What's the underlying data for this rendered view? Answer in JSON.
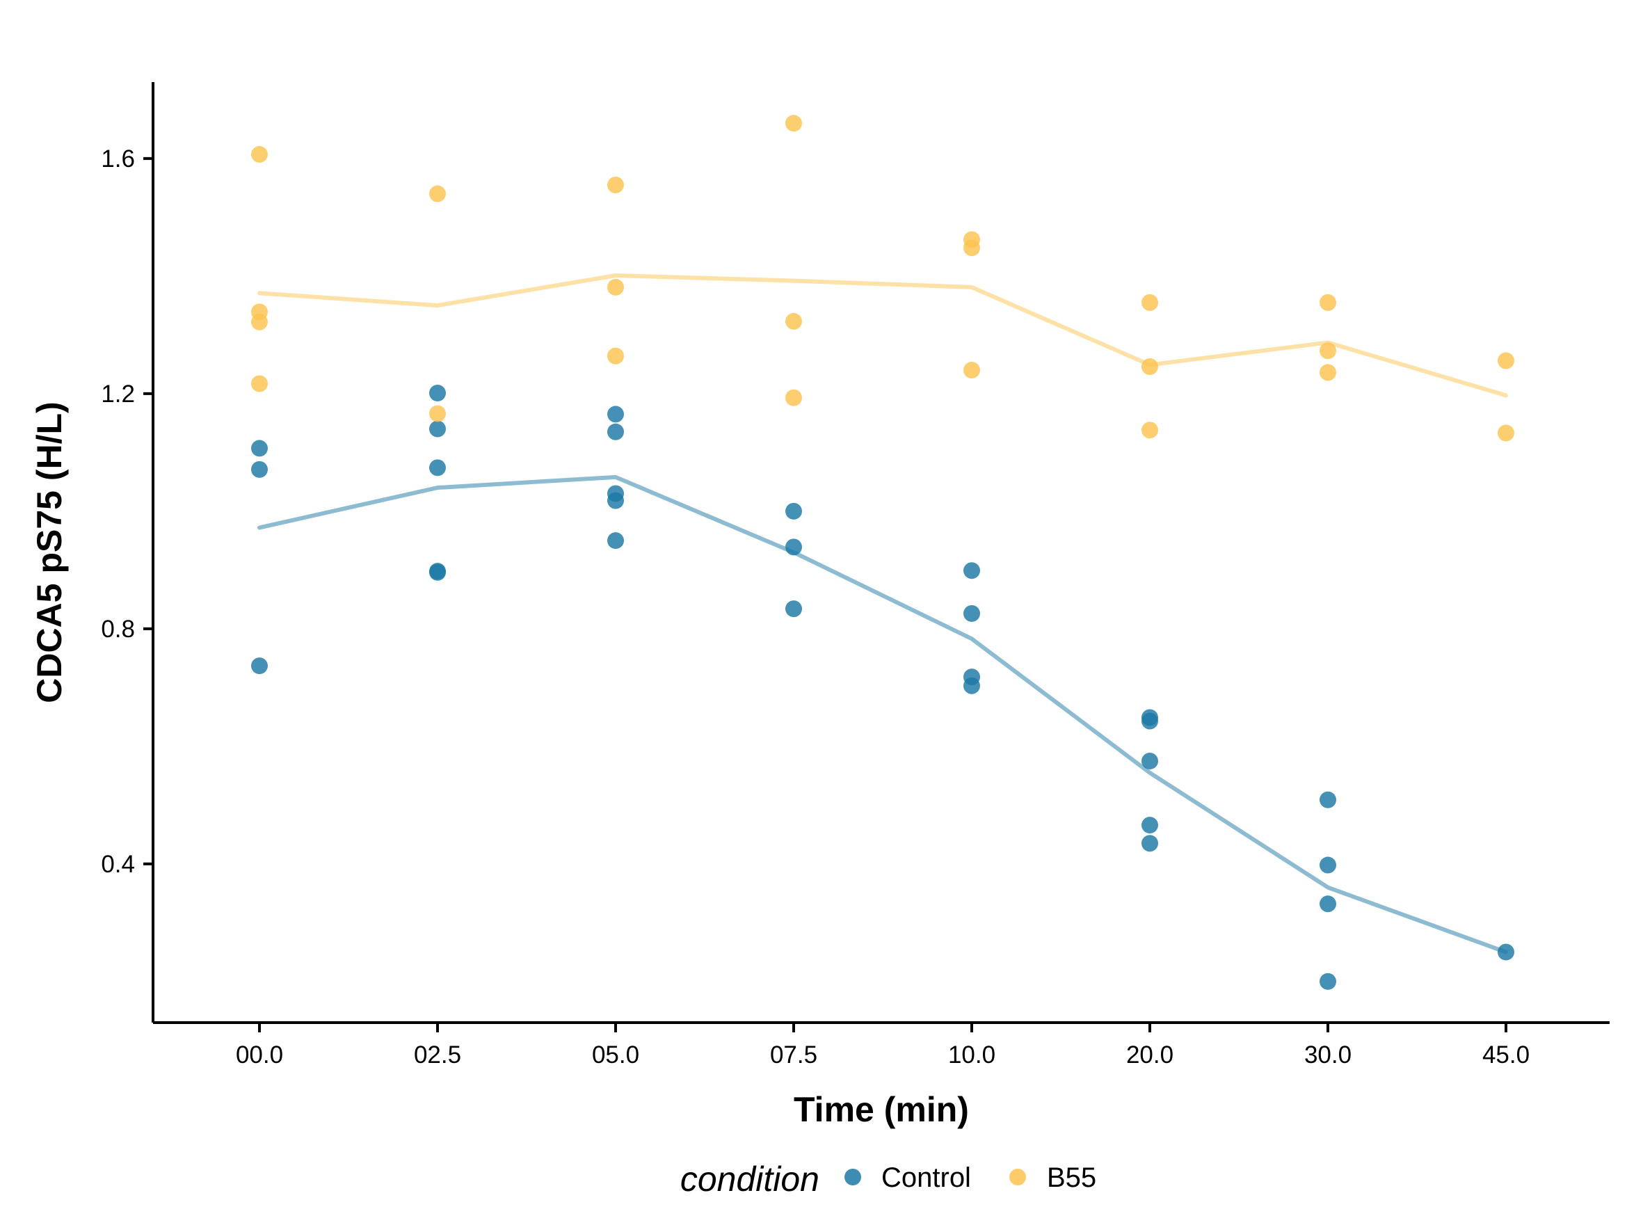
{
  "chart_data": {
    "type": "scatter",
    "xlabel": "Time (min)",
    "ylabel": "CDCA5 pS75 (H/L)",
    "categories": [
      "00.0",
      "02.5",
      "05.0",
      "07.5",
      "10.0",
      "20.0",
      "30.0",
      "45.0"
    ],
    "yticks": [
      "0.4",
      "0.8",
      "1.2",
      "1.6"
    ],
    "ytick_values": [
      0.4,
      0.8,
      1.2,
      1.6
    ],
    "ylim": [
      0.13,
      1.73
    ],
    "legend": {
      "title": "condition",
      "position": "bottom"
    },
    "series": [
      {
        "name": "Control",
        "color": "#1B79A5",
        "points": [
          [
            "00.0",
            1.107
          ],
          [
            "00.0",
            1.071
          ],
          [
            "00.0",
            0.737
          ],
          [
            "02.5",
            1.201
          ],
          [
            "02.5",
            1.14
          ],
          [
            "02.5",
            1.074
          ],
          [
            "02.5",
            0.898
          ],
          [
            "02.5",
            0.896
          ],
          [
            "05.0",
            1.165
          ],
          [
            "05.0",
            1.135
          ],
          [
            "05.0",
            1.03
          ],
          [
            "05.0",
            1.018
          ],
          [
            "05.0",
            0.95
          ],
          [
            "07.5",
            1.0
          ],
          [
            "07.5",
            0.939
          ],
          [
            "07.5",
            0.834
          ],
          [
            "10.0",
            0.899
          ],
          [
            "10.0",
            0.826
          ],
          [
            "10.0",
            0.718
          ],
          [
            "10.0",
            0.703
          ],
          [
            "20.0",
            0.649
          ],
          [
            "20.0",
            0.643
          ],
          [
            "20.0",
            0.575
          ],
          [
            "20.0",
            0.466
          ],
          [
            "20.0",
            0.435
          ],
          [
            "30.0",
            0.509
          ],
          [
            "30.0",
            0.398
          ],
          [
            "30.0",
            0.332
          ],
          [
            "30.0",
            0.2
          ],
          [
            "45.0",
            0.25
          ]
        ],
        "line": [
          0.972,
          1.04,
          1.058,
          0.93,
          0.783,
          0.555,
          0.36,
          0.25
        ]
      },
      {
        "name": "B55",
        "color": "#FDC34F",
        "points": [
          [
            "00.0",
            1.607
          ],
          [
            "00.0",
            1.339
          ],
          [
            "00.0",
            1.322
          ],
          [
            "00.0",
            1.217
          ],
          [
            "02.5",
            1.54
          ],
          [
            "02.5",
            1.166
          ],
          [
            "05.0",
            1.555
          ],
          [
            "05.0",
            1.381
          ],
          [
            "05.0",
            1.264
          ],
          [
            "07.5",
            1.66
          ],
          [
            "07.5",
            1.323
          ],
          [
            "07.5",
            1.193
          ],
          [
            "10.0",
            1.462
          ],
          [
            "10.0",
            1.448
          ],
          [
            "10.0",
            1.24
          ],
          [
            "20.0",
            1.355
          ],
          [
            "20.0",
            1.246
          ],
          [
            "20.0",
            1.138
          ],
          [
            "30.0",
            1.355
          ],
          [
            "30.0",
            1.273
          ],
          [
            "30.0",
            1.236
          ],
          [
            "45.0",
            1.256
          ],
          [
            "45.0",
            1.133
          ]
        ],
        "line": [
          1.371,
          1.35,
          1.401,
          1.392,
          1.381,
          1.249,
          1.287,
          1.197
        ]
      }
    ]
  }
}
